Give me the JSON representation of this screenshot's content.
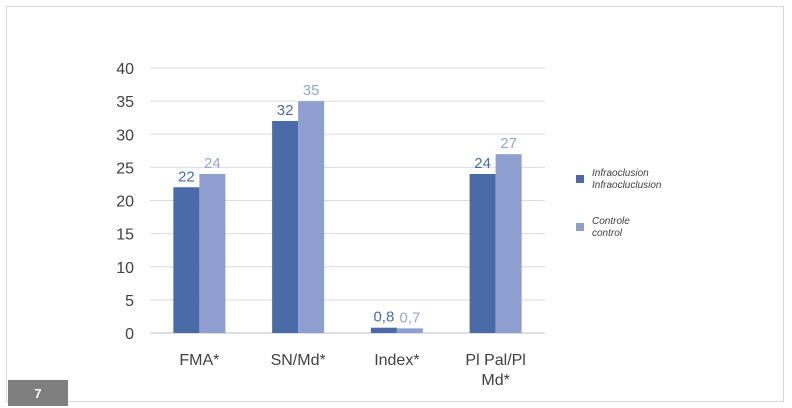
{
  "figure": {
    "badge": "7"
  },
  "chart_data": {
    "type": "bar",
    "categories": [
      "FMA*",
      "SN/Md*",
      "Index*",
      "Pl Pal/Pl Md*"
    ],
    "category_lines": [
      [
        "FMA*"
      ],
      [
        "SN/Md*"
      ],
      [
        "Index*"
      ],
      [
        "Pl Pal/Pl",
        "Md*"
      ]
    ],
    "series": [
      {
        "name": "Infraoclusion Infraocluclusion",
        "legend_lines": [
          "Infraoclusion",
          "Infraocluclusion"
        ],
        "color": "#4a6aa8",
        "values": [
          22,
          32,
          0.8,
          24
        ],
        "labels": [
          "22",
          "32",
          "0,8",
          "24"
        ],
        "label_color": "#4a6aa8"
      },
      {
        "name": "Controle control",
        "legend_lines": [
          "Controle",
          "control"
        ],
        "color": "#8e9fcf",
        "values": [
          24,
          35,
          0.7,
          27
        ],
        "labels": [
          "24",
          "35",
          "0,7",
          "27"
        ],
        "label_color": "#95a6d3"
      }
    ],
    "title": "",
    "xlabel": "",
    "ylabel": "",
    "ylim": [
      0,
      40
    ],
    "yticks": [
      0,
      5,
      10,
      15,
      20,
      25,
      30,
      35,
      40
    ],
    "grid": true,
    "legend_position": "right"
  }
}
